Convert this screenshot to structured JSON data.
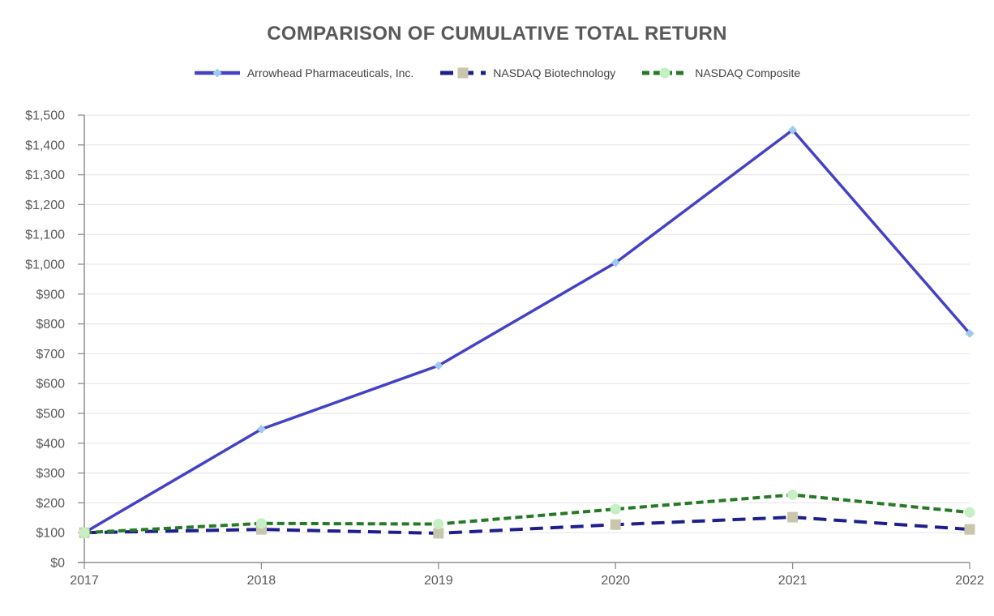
{
  "chart_data": {
    "type": "line",
    "title": "COMPARISON OF CUMULATIVE TOTAL RETURN",
    "x": [
      "2017",
      "2018",
      "2019",
      "2020",
      "2021",
      "2022"
    ],
    "series": [
      {
        "name": "Arrowhead Pharmaceuticals, Inc.",
        "values": [
          100,
          447,
          660,
          1005,
          1450,
          768
        ],
        "line_color": "#4341C6",
        "line_width": 3.5,
        "dash": "solid",
        "marker": "diamond",
        "marker_color": "#9FC9EE",
        "marker_size": 11
      },
      {
        "name": "NASDAQ Biotechnology",
        "values": [
          100,
          111,
          98,
          127,
          152,
          111
        ],
        "line_color": "#1F1F8B",
        "line_width": 4,
        "dash": "16,9",
        "marker": "square",
        "marker_color": "#C8C6AC",
        "marker_size": 13
      },
      {
        "name": "NASDAQ Composite",
        "values": [
          100,
          131,
          129,
          179,
          227,
          168
        ],
        "line_color": "#267A26",
        "line_width": 4,
        "dash": "9,5",
        "marker": "circle",
        "marker_color": "#C6EFC3",
        "marker_size": 13
      }
    ],
    "ylim": [
      0,
      1500
    ],
    "ytick_step": 100,
    "y_prefix": "$",
    "grid": true,
    "legend_position": "top",
    "colors": {
      "title_text": "#595959",
      "axis_line": "#8E8E8E",
      "gridline": "#E7E7E7",
      "tick_label_text": "#595959",
      "legend_text": "#404040",
      "background": "#FFFFFF"
    }
  }
}
